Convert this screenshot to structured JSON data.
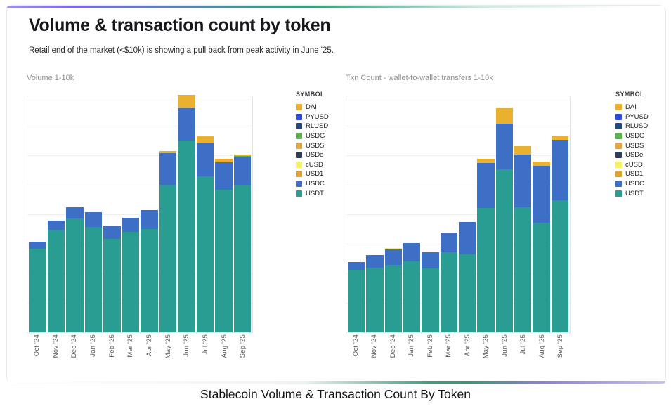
{
  "header": {
    "title": "Volume & transaction count by token",
    "subtitle": "Retail end of the market (<$10k) is showing a pull back from peak activity in June '25."
  },
  "caption": "Stablecoin Volume & Transaction Count By Token",
  "legend": {
    "header": "SYMBOL",
    "items": [
      "DAI",
      "PYUSD",
      "RLUSD",
      "USDG",
      "USDS",
      "USDe",
      "cUSD",
      "USD1",
      "USDC",
      "USDT"
    ],
    "colors": {
      "DAI": "#E9B12F",
      "PYUSD": "#2F4BD7",
      "RLUSD": "#23477E",
      "USDG": "#56B44B",
      "USDS": "#E3A53C",
      "USDe": "#333E54",
      "cUSD": "#F4F163",
      "USD1": "#DFA32E",
      "USDC": "#3D6FC7",
      "USDT": "#299D92"
    }
  },
  "accent": {
    "top_gradient": [
      "#a08fee 0%",
      "#7b6ae0 10%",
      "#33a076 46%",
      "#cfe9dd 72%",
      "#ffffff 95%"
    ],
    "bottom_gradient": [
      "#ffffff 0%",
      "#ecf4f0 45%",
      "#3aa37d 64%",
      "#2f9e6e 70%",
      "#8f7fe4 82%",
      "#c9c0f3 100%"
    ]
  },
  "chart_data": [
    {
      "type": "bar",
      "stacked": true,
      "title": "Volume 1-10k",
      "xlabel": "",
      "ylabel": "",
      "legend_position": "right",
      "grid": true,
      "unit": "percent of plot height (no y-axis labels shown)",
      "categories": [
        "Oct '24",
        "Nov '24",
        "Dec '24",
        "Jan '25",
        "Feb '25",
        "Mar '25",
        "Apr '25",
        "May '25",
        "Jun '25",
        "Jul '25",
        "Aug '25",
        "Sep '25"
      ],
      "series": [
        {
          "name": "USDT",
          "values": [
            35.5,
            43.5,
            48.1,
            44.5,
            39.6,
            42.6,
            43.8,
            62.6,
            81.3,
            66.0,
            60.4,
            62.3
          ]
        },
        {
          "name": "USDC",
          "values": [
            3.0,
            3.7,
            4.9,
            6.4,
            5.5,
            5.9,
            8.1,
            13.3,
            13.5,
            14.1,
            11.7,
            11.8
          ]
        },
        {
          "name": "USDG",
          "values": [
            0,
            0,
            0,
            0,
            0,
            0,
            0,
            0,
            0,
            0,
            0,
            0.5
          ]
        },
        {
          "name": "DAI",
          "values": [
            0,
            0,
            0,
            0,
            0,
            0,
            0,
            1.0,
            5.9,
            3.2,
            1.5,
            0.6
          ]
        }
      ]
    },
    {
      "type": "bar",
      "stacked": true,
      "title": "Txn Count - wallet-to-wallet transfers 1-10k",
      "xlabel": "",
      "ylabel": "",
      "legend_position": "right",
      "grid": true,
      "unit": "percent of plot height (no y-axis labels shown)",
      "categories": [
        "Oct '24",
        "Nov '24",
        "Dec '24",
        "Jan '25",
        "Feb '25",
        "Mar '25",
        "Apr '25",
        "May '25",
        "Jun '25",
        "Jul '25",
        "Aug '25",
        "Sep '25"
      ],
      "series": [
        {
          "name": "USDT",
          "values": [
            26.6,
            27.4,
            28.6,
            30.0,
            27.1,
            34.0,
            33.0,
            52.7,
            69.0,
            52.9,
            46.3,
            55.9
          ]
        },
        {
          "name": "USDC",
          "values": [
            3.3,
            5.3,
            6.4,
            7.9,
            6.9,
            8.2,
            13.8,
            18.9,
            19.4,
            22.5,
            24.1,
            25.6
          ]
        },
        {
          "name": "cUSD",
          "values": [
            0,
            0,
            0.7,
            0,
            0,
            0,
            0,
            0,
            0,
            0,
            0,
            0
          ]
        },
        {
          "name": "DAI",
          "values": [
            0,
            0,
            0,
            0,
            0,
            0,
            0,
            1.8,
            6.7,
            3.4,
            1.8,
            1.8
          ]
        }
      ]
    }
  ]
}
